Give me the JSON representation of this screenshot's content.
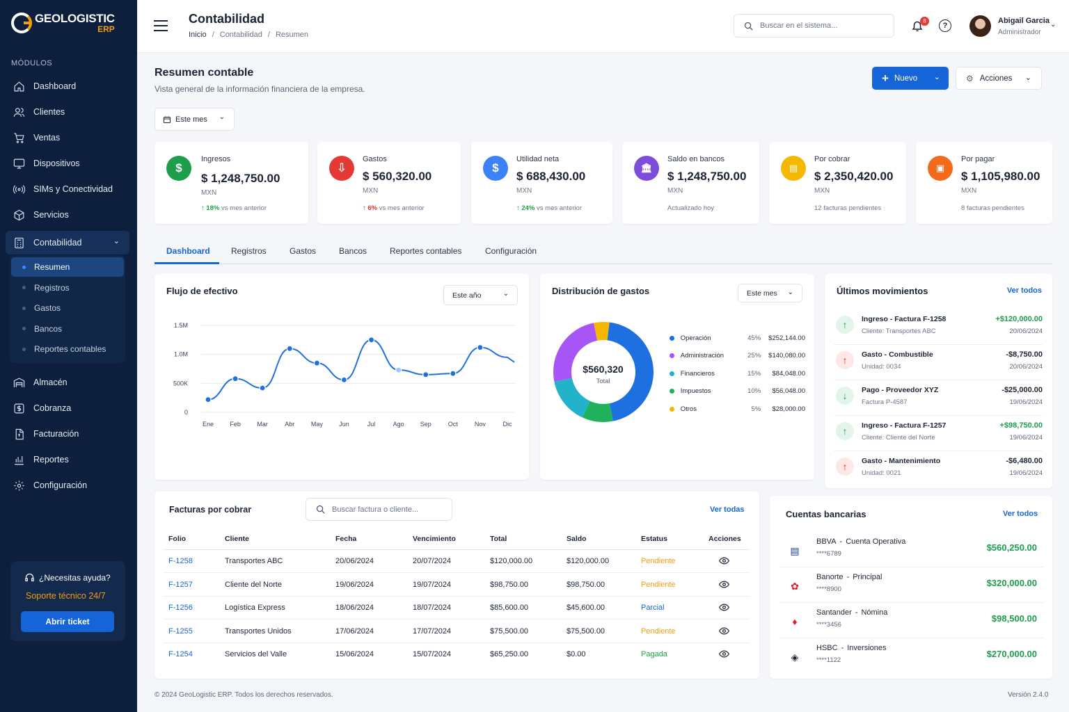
{
  "brand": {
    "name": "GEOLOGISTIC",
    "sub": "ERP"
  },
  "sidebar": {
    "modules_label": "MÓDULOS",
    "items": [
      {
        "label": "Dashboard",
        "icon": "home-icon"
      },
      {
        "label": "Clientes",
        "icon": "users-icon"
      },
      {
        "label": "Ventas",
        "icon": "cart-icon"
      },
      {
        "label": "Dispositivos",
        "icon": "monitor-icon"
      },
      {
        "label": "SIMs y Conectividad",
        "icon": "signal-icon"
      },
      {
        "label": "Servicios",
        "icon": "box-icon"
      },
      {
        "label": "Contabilidad",
        "icon": "calculator-icon"
      },
      {
        "label": "Almacén",
        "icon": "warehouse-icon"
      },
      {
        "label": "Cobranza",
        "icon": "dollar-icon"
      },
      {
        "label": "Facturación",
        "icon": "invoice-icon"
      },
      {
        "label": "Reportes",
        "icon": "bar-chart-icon"
      },
      {
        "label": "Configuración",
        "icon": "gear-icon"
      }
    ],
    "submenu": [
      "Resumen",
      "Registros",
      "Gastos",
      "Bancos",
      "Reportes contables"
    ],
    "help": {
      "title": "¿Necesitas ayuda?",
      "subtitle": "Soporte técnico 24/7",
      "button": "Abrir ticket"
    }
  },
  "header": {
    "title": "Contabilidad",
    "breadcrumb": [
      "Inicio",
      "/",
      "Contabilidad",
      "/",
      "Resumen"
    ],
    "search_placeholder": "Buscar en el sistema...",
    "notifications": "8",
    "user": {
      "name": "Abigail Garcia",
      "role": "Administrador"
    }
  },
  "page": {
    "title": "Resumen contable",
    "subtitle": "Vista general de la información financiera de la empresa.",
    "new_button": "Nuevo",
    "actions_button": "Acciones",
    "period": "Este mes"
  },
  "kpis": [
    {
      "label": "Ingresos",
      "value": "$ 1,248,750.00",
      "currency": "MXN",
      "change": "18%",
      "change_text": "vs mes anterior",
      "color": "#1e9e4a",
      "symbol": "$"
    },
    {
      "label": "Gastos",
      "value": "$ 560,320.00",
      "currency": "MXN",
      "change": "6%",
      "change_text": "vs mes anterior",
      "color": "#e53935",
      "symbol": "⇩"
    },
    {
      "label": "Utilidad neta",
      "value": "$ 688,430.00",
      "currency": "MXN",
      "change": "24%",
      "change_text": "vs mes anterior",
      "color": "#3b82f6",
      "symbol": "$"
    },
    {
      "label": "Saldo en bancos",
      "value": "$ 1,248,750.00",
      "currency": "MXN",
      "footer": "Actualizado hoy",
      "color": "#7c4ddb",
      "symbol": "🏛"
    },
    {
      "label": "Por cobrar",
      "value": "$ 2,350,420.00",
      "currency": "MXN",
      "footer": "12 facturas pendientes",
      "color": "#f5b800",
      "symbol": "▤"
    },
    {
      "label": "Por pagar",
      "value": "$ 1,105,980.00",
      "currency": "MXN",
      "footer": "8 facturas pendientes",
      "color": "#f26b1d",
      "symbol": "▣"
    }
  ],
  "tabs": [
    "Dashboard",
    "Registros",
    "Gastos",
    "Bancos",
    "Reportes contables",
    "Configuración"
  ],
  "cashflow": {
    "title": "Flujo de efectivo",
    "period": "Este año"
  },
  "expenses": {
    "title": "Distribución de gastos",
    "period": "Este mes",
    "total_value": "$560,320",
    "total_label": "Total"
  },
  "movements": {
    "title": "Últimos movimientos",
    "link": "Ver todos",
    "items": [
      {
        "title": "Ingreso - Factura F-1258",
        "sub": "Cliente: Transportes ABC",
        "amount": "+$120,000.00",
        "date": "20/06/2024",
        "type": "in"
      },
      {
        "title": "Gasto - Combustible",
        "sub": "Unidad: 0034",
        "amount": "-$8,750.00",
        "date": "20/06/2024",
        "type": "out"
      },
      {
        "title": "Pago - Proveedor XYZ",
        "sub": "Factura P-4587",
        "amount": "-$25,000.00",
        "date": "19/06/2024",
        "type": "pay"
      },
      {
        "title": "Ingreso - Factura F-1257",
        "sub": "Cliente: Cliente del Norte",
        "amount": "+$98,750.00",
        "date": "19/06/2024",
        "type": "in"
      },
      {
        "title": "Gasto - Mantenimiento",
        "sub": "Unidad: 0021",
        "amount": "-$6,480.00",
        "date": "19/06/2024",
        "type": "out"
      }
    ]
  },
  "invoices": {
    "title": "Facturas por cobrar",
    "search_placeholder": "Buscar factura o cliente...",
    "link": "Ver todas",
    "columns": [
      "Folio",
      "Cliente",
      "Fecha",
      "Vencimiento",
      "Total",
      "Saldo",
      "Estatus",
      "Acciones"
    ],
    "rows": [
      {
        "folio": "F-1258",
        "client": "Transportes ABC",
        "date": "20/06/2024",
        "due": "20/07/2024",
        "total": "$120,000.00",
        "balance": "$120,000.00",
        "status": "Pendiente",
        "status_color": "#f39c12"
      },
      {
        "folio": "F-1257",
        "client": "Cliente del Norte",
        "date": "19/06/2024",
        "due": "19/07/2024",
        "total": "$98,750.00",
        "balance": "$98,750.00",
        "status": "Pendiente",
        "status_color": "#f39c12"
      },
      {
        "folio": "F-1256",
        "client": "Logística Express",
        "date": "18/06/2024",
        "due": "18/07/2024",
        "total": "$85,600.00",
        "balance": "$45,600.00",
        "status": "Parcial",
        "status_color": "#1565d8"
      },
      {
        "folio": "F-1255",
        "client": "Transportes Unidos",
        "date": "17/06/2024",
        "due": "17/07/2024",
        "total": "$75,500.00",
        "balance": "$75,500.00",
        "status": "Pendiente",
        "status_color": "#f39c12"
      },
      {
        "folio": "F-1254",
        "client": "Servicios del Valle",
        "date": "15/06/2024",
        "due": "15/07/2024",
        "total": "$65,250.00",
        "balance": "$0.00",
        "status": "Pagada",
        "status_color": "#1e9e4a"
      }
    ]
  },
  "banks": {
    "title": "Cuentas bancarias",
    "link": "Ver todos",
    "items": [
      {
        "bank": "BBVA",
        "sep": "-",
        "account": "Cuenta Operativa",
        "number": "****6789",
        "amount": "$560,250.00",
        "color": "#1a3fa0"
      },
      {
        "bank": "Banorte",
        "sep": "-",
        "account": "Principal",
        "number": "****8900",
        "amount": "$320,000.00",
        "color": "#e31b23"
      },
      {
        "bank": "Santander",
        "sep": "-",
        "account": "Nómina",
        "number": "****3456",
        "amount": "$98,500.00",
        "color": "#e31b23"
      },
      {
        "bank": "HSBC",
        "sep": "-",
        "account": "Inversiones",
        "number": "****1122",
        "amount": "$270,000.00",
        "color": "#1b2333"
      }
    ]
  },
  "footer": {
    "copyright": "© 2024 GeoLogistic ERP. Todos los derechos reservados.",
    "version": "Versión 2.4.0"
  },
  "chart_data": [
    {
      "type": "line",
      "title": "Flujo de efectivo",
      "categories": [
        "Ene",
        "Feb",
        "Mar",
        "Abr",
        "May",
        "Jun",
        "Jul",
        "Ago",
        "Sep",
        "Oct",
        "Nov",
        "Dic"
      ],
      "y_ticks": [
        "0",
        "500K",
        "1.0M",
        "1.5M"
      ],
      "ylim": [
        0,
        1500000
      ],
      "values": [
        220000,
        580000,
        420000,
        1100000,
        850000,
        560000,
        1250000,
        730000,
        650000,
        670000,
        1120000,
        950000
      ],
      "color": "#1e6fe0"
    },
    {
      "type": "pie",
      "title": "Distribución de gastos",
      "slices": [
        {
          "label": "Operación",
          "percent": "45%",
          "value": "$252,144.00",
          "share": 45,
          "color": "#1e6fe0"
        },
        {
          "label": "Administración",
          "percent": "25%",
          "value": "$140,080.00",
          "share": 25,
          "color": "#a855f7"
        },
        {
          "label": "Financieros",
          "percent": "15%",
          "value": "$84,048.00",
          "share": 15,
          "color": "#22b2c9"
        },
        {
          "label": "Impuestos",
          "percent": "10%",
          "value": "$56,048.00",
          "share": 10,
          "color": "#1fb25a"
        },
        {
          "label": "Otros",
          "percent": "5%",
          "value": "$28,000.00",
          "share": 5,
          "color": "#f5b800"
        }
      ]
    }
  ]
}
